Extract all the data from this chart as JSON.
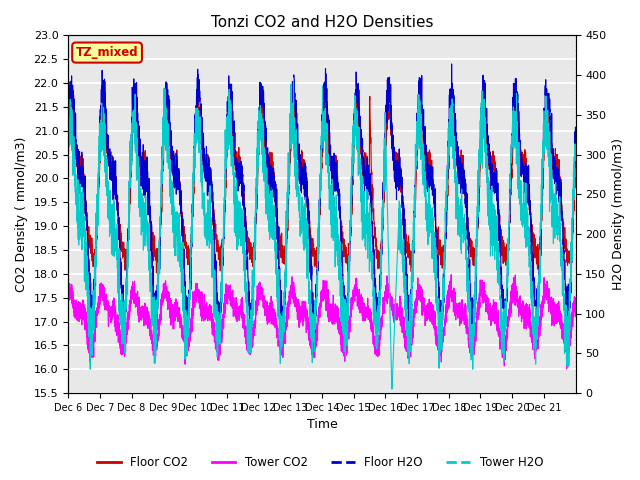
{
  "title": "Tonzi CO2 and H2O Densities",
  "xlabel": "Time",
  "ylabel_left": "CO2 Density ( mmol/m3)",
  "ylabel_right": "H2O Density (mmol/m3)",
  "ylim_left": [
    15.5,
    23.0
  ],
  "ylim_right": [
    0,
    450
  ],
  "yticks_left": [
    15.5,
    16.0,
    16.5,
    17.0,
    17.5,
    18.0,
    18.5,
    19.0,
    19.5,
    20.0,
    20.5,
    21.0,
    21.5,
    22.0,
    22.5,
    23.0
  ],
  "yticks_right": [
    0,
    50,
    100,
    150,
    200,
    250,
    300,
    350,
    400,
    450
  ],
  "xtick_labels": [
    "Dec 6",
    "Dec 7",
    "Dec 8",
    "Dec 9",
    "Dec 10",
    "Dec 11",
    "Dec 12",
    "Dec 13",
    "Dec 14",
    "Dec 15",
    "Dec 16",
    "Dec 17",
    "Dec 18",
    "Dec 19",
    "Dec 20",
    "Dec 21"
  ],
  "colors": {
    "floor_co2": "#cc0000",
    "tower_co2": "#ff00ff",
    "floor_h2o": "#0000cc",
    "tower_h2o": "#00cccc"
  },
  "annotation_text": "TZ_mixed",
  "annotation_color": "#cc0000",
  "annotation_bg": "#ffff99",
  "annotation_border": "#cc0000",
  "background_color": "#e8e8e8",
  "grid_color": "#ffffff",
  "n_points": 3840,
  "seed": 42,
  "legend_labels": [
    "Floor CO2",
    "Tower CO2",
    "Floor H2O",
    "Tower H2O"
  ]
}
